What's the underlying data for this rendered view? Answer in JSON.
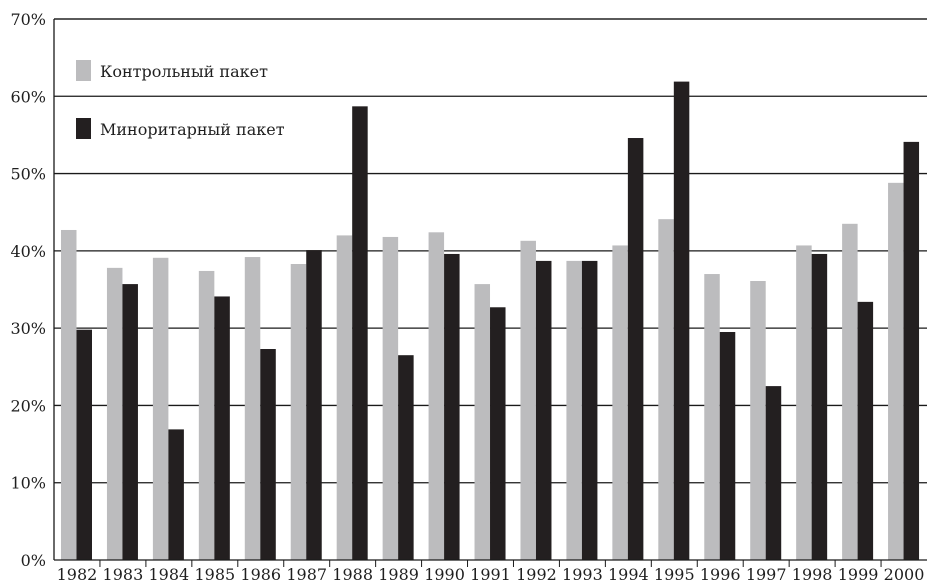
{
  "chart_data": {
    "type": "bar",
    "title": "",
    "xlabel": "",
    "ylabel": "",
    "categories": [
      "1982",
      "1983",
      "1984",
      "1985",
      "1986",
      "1987",
      "1988",
      "1989",
      "1990",
      "1991",
      "1992",
      "1993",
      "1994",
      "1995",
      "1996",
      "1997",
      "1998",
      "1999",
      "2000"
    ],
    "series": [
      {
        "name": "Контрольный пакет",
        "color": "#bcbcbe",
        "values": [
          42.7,
          37.8,
          39.1,
          37.4,
          39.2,
          38.3,
          42.0,
          41.8,
          42.4,
          35.7,
          41.3,
          38.7,
          40.7,
          44.1,
          37.0,
          36.1,
          40.7,
          43.5,
          48.8
        ]
      },
      {
        "name": "Миноритарный пакет",
        "color": "#231f20",
        "values": [
          29.8,
          35.7,
          16.9,
          34.1,
          27.3,
          40.1,
          58.7,
          26.5,
          39.6,
          32.7,
          38.7,
          38.7,
          54.6,
          61.9,
          29.5,
          22.5,
          39.6,
          33.4,
          54.1
        ]
      }
    ],
    "ylim": [
      0,
      70
    ],
    "yticks": [
      0,
      10,
      20,
      30,
      40,
      50,
      60,
      70
    ],
    "ytick_labels": [
      "0%",
      "10%",
      "20%",
      "30%",
      "40%",
      "50%",
      "60%",
      "70%"
    ],
    "grid": true,
    "legend": {
      "placement": "top-left"
    }
  }
}
